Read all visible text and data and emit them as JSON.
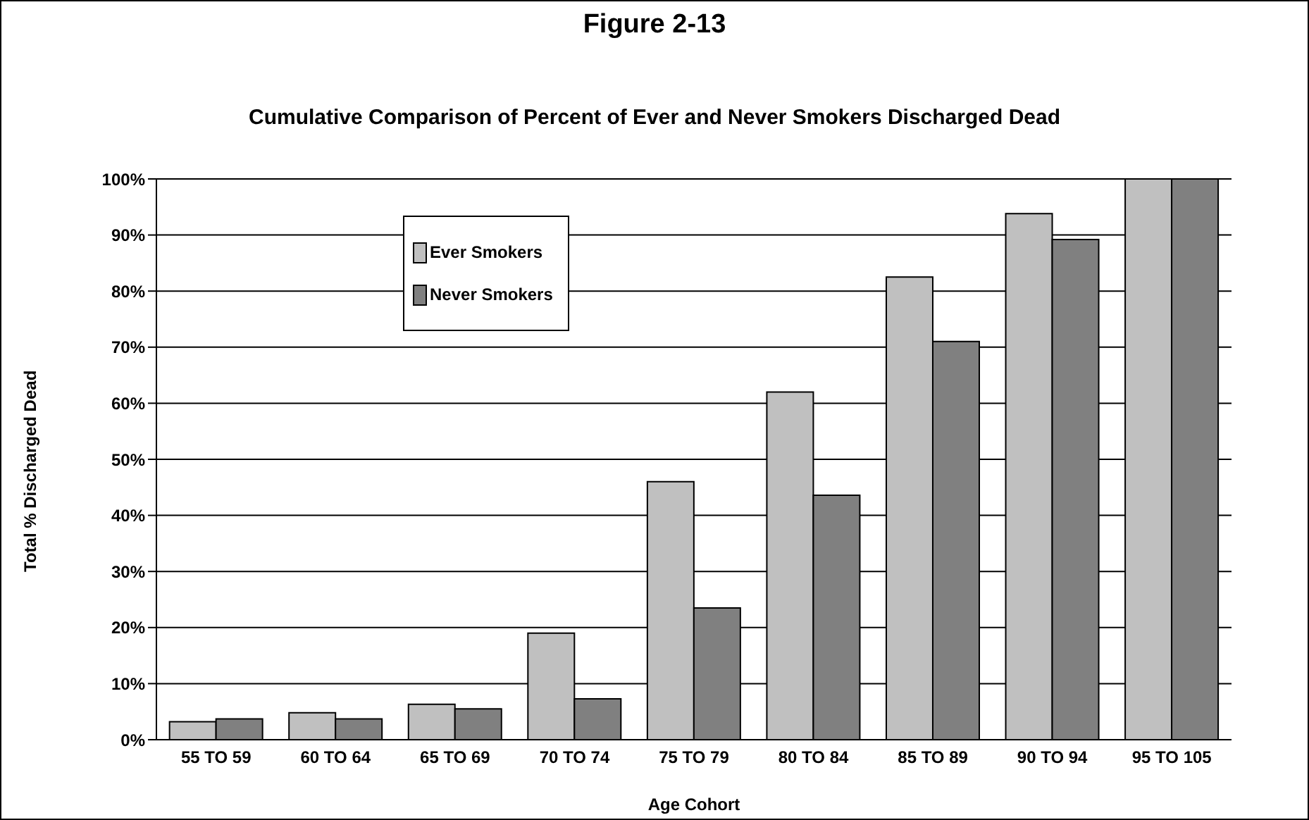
{
  "chart_data": {
    "type": "bar",
    "title": "Figure 2-13",
    "subtitle": "Cumulative Comparison of Percent of Ever and Never Smokers Discharged Dead",
    "xlabel": "Age Cohort",
    "ylabel": "Total % Discharged Dead",
    "categories": [
      "55 TO 59",
      "60 TO 64",
      "65 TO 69",
      "70 TO 74",
      "75 TO 79",
      "80 TO 84",
      "85 TO 89",
      "90 TO 94",
      "95 TO 105"
    ],
    "series": [
      {
        "name": "Ever Smokers",
        "color": "#c0c0c0",
        "values": [
          3.2,
          4.8,
          6.3,
          19,
          46,
          62,
          82.5,
          93.8,
          100
        ]
      },
      {
        "name": "Never Smokers",
        "color": "#808080",
        "values": [
          3.7,
          3.7,
          5.5,
          7.3,
          23.5,
          43.6,
          71,
          89.2,
          100
        ]
      }
    ],
    "ylim": [
      0,
      100
    ],
    "yticks": [
      {
        "value": 0,
        "label": "0%"
      },
      {
        "value": 10,
        "label": "10%"
      },
      {
        "value": 20,
        "label": "20%"
      },
      {
        "value": 30,
        "label": "30%"
      },
      {
        "value": 40,
        "label": "40%"
      },
      {
        "value": 50,
        "label": "50%"
      },
      {
        "value": 60,
        "label": "60%"
      },
      {
        "value": 70,
        "label": "70%"
      },
      {
        "value": 80,
        "label": "80%"
      },
      {
        "value": 90,
        "label": "90%"
      },
      {
        "value": 100,
        "label": "100%"
      }
    ],
    "grid": "y",
    "legend": "top left"
  }
}
